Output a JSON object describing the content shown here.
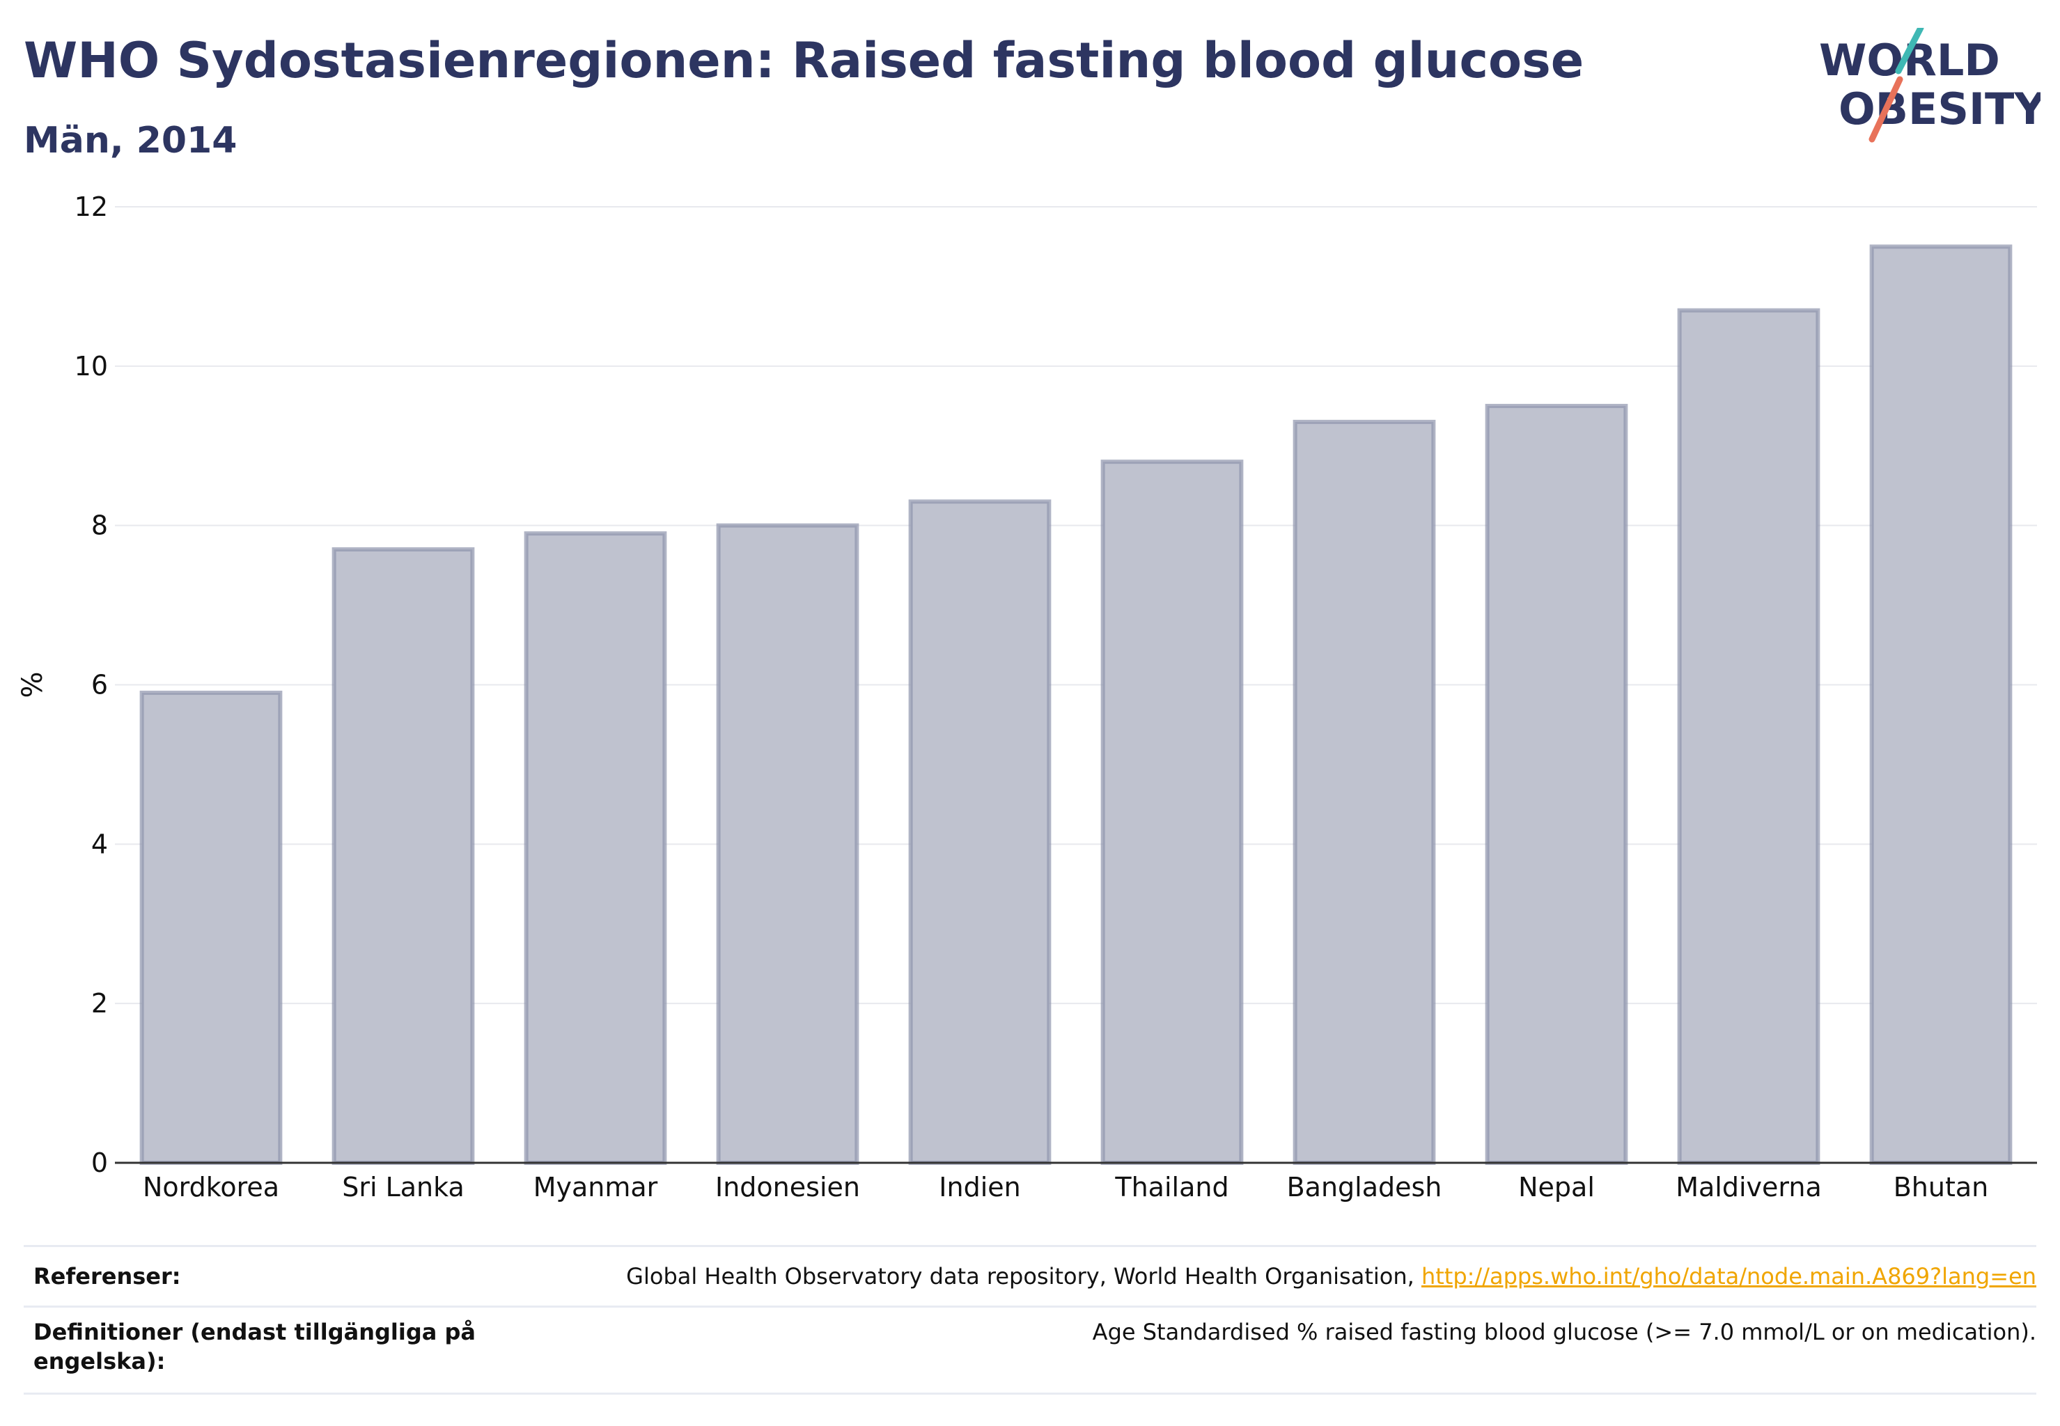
{
  "header": {
    "title": "WHO Sydostasienregionen: Raised fasting blood glucose",
    "subtitle": "Män, 2014"
  },
  "logo": {
    "line1": "WORLD",
    "line2": "OBESITY",
    "accent_teal": "#3fb8b4",
    "accent_coral": "#e8725a"
  },
  "chart_data": {
    "type": "bar",
    "categories": [
      "Nordkorea",
      "Sri Lanka",
      "Myanmar",
      "Indonesien",
      "Indien",
      "Thailand",
      "Bangladesh",
      "Nepal",
      "Maldiverna",
      "Bhutan"
    ],
    "values": [
      5.9,
      7.7,
      7.9,
      8.0,
      8.3,
      8.8,
      9.3,
      9.5,
      10.7,
      11.5
    ],
    "ylabel": "%",
    "ylim": [
      0,
      12
    ],
    "yticks": [
      0,
      2,
      4,
      6,
      8,
      10,
      12
    ],
    "grid": true,
    "bar_fill": "#bfc2cf",
    "bar_stroke": "#8e94ad"
  },
  "references": {
    "ref_label": "Referenser:",
    "ref_text": "Global Health Observatory data repository, World Health Organisation, ",
    "ref_link": "http://apps.who.int/gho/data/node.main.A869?lang=en",
    "def_label": "Definitioner (endast tillgängliga på engelska):",
    "def_text": "Age Standardised % raised fasting blood glucose (>= 7.0 mmol/L or on medication)."
  }
}
